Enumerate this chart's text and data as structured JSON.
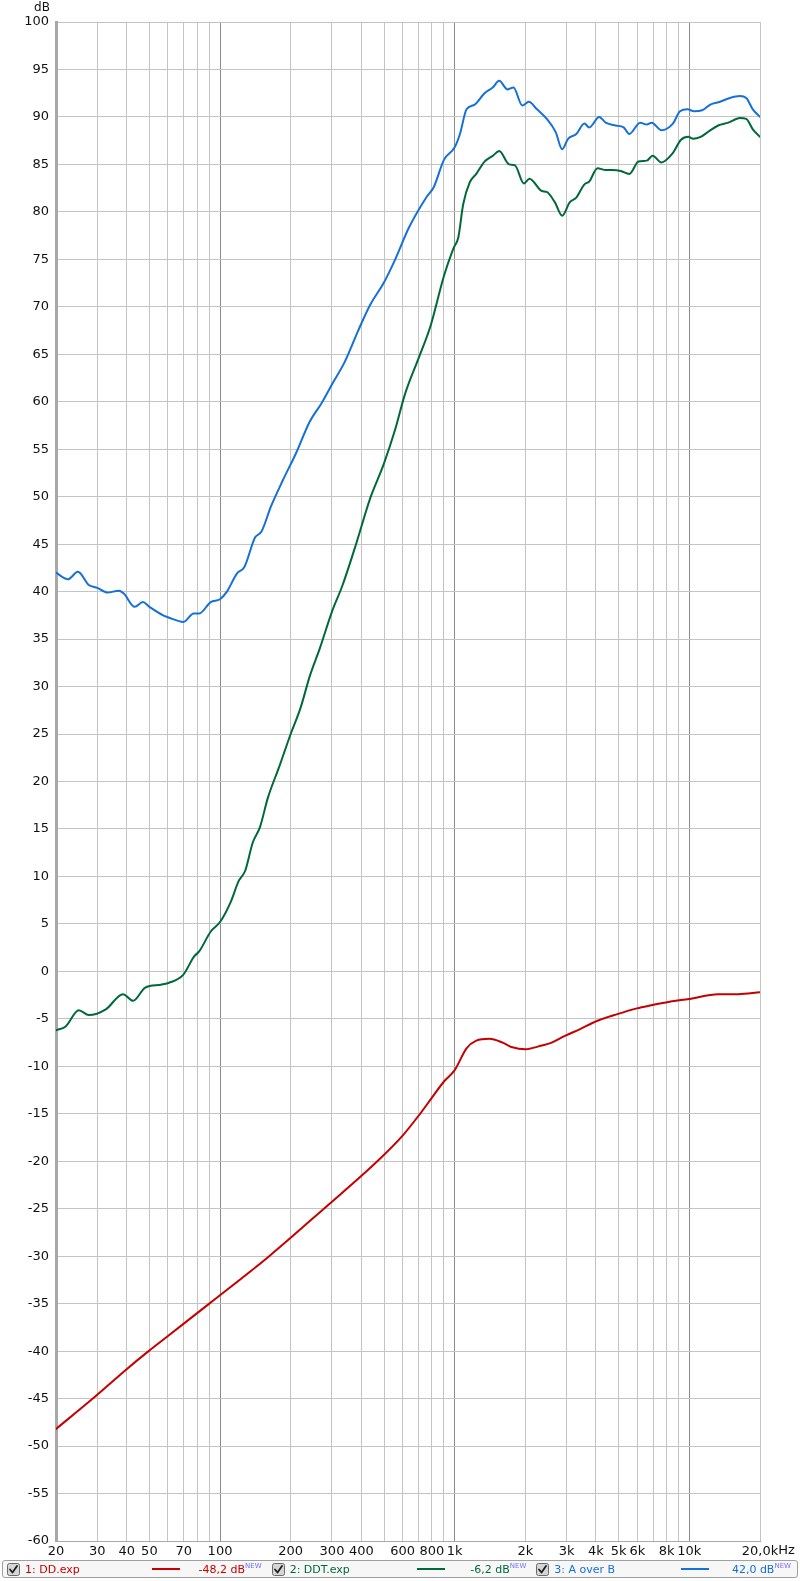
{
  "chart_data": {
    "type": "line",
    "ylabel": "dB",
    "xlabel": "Hz",
    "log": "x",
    "grid": true,
    "legend": "bottom",
    "xlim": [
      20,
      20000
    ],
    "ylim": [
      -60,
      100
    ],
    "xticks": [
      20,
      30,
      40,
      50,
      {
        "value": 60,
        "label": null
      },
      70,
      {
        "value": 80,
        "label": null
      },
      {
        "value": 90,
        "label": null
      },
      100,
      200,
      300,
      400,
      {
        "value": 500,
        "label": null
      },
      600,
      {
        "value": 700,
        "label": null
      },
      800,
      {
        "value": 900,
        "label": null
      },
      {
        "value": 1000,
        "label": "1k"
      },
      {
        "value": 2000,
        "label": "2k"
      },
      {
        "value": 3000,
        "label": "3k"
      },
      {
        "value": 4000,
        "label": "4k"
      },
      {
        "value": 5000,
        "label": "5k"
      },
      {
        "value": 6000,
        "label": "6k"
      },
      {
        "value": 7000,
        "label": null
      },
      {
        "value": 8000,
        "label": "8k"
      },
      {
        "value": 9000,
        "label": null
      },
      {
        "value": 10000,
        "label": "10k"
      },
      {
        "value": 20000,
        "label": "20,0k"
      }
    ],
    "yticks": [
      -60,
      -55,
      -50,
      -45,
      -40,
      -35,
      -30,
      -25,
      -20,
      -15,
      -10,
      -5,
      0,
      5,
      10,
      15,
      20,
      25,
      30,
      35,
      40,
      45,
      50,
      55,
      60,
      65,
      70,
      75,
      80,
      85,
      90,
      95,
      100
    ],
    "annotations": [
      "-48,2 dB$^{NEW}$",
      "-6,2 dB$^{NEW}$",
      "42,0 dB$^{NEW}$"
    ],
    "series": [
      {
        "name": "1: DD.exp",
        "color": "#c40000",
        "x": [
          20,
          28.7,
          40,
          49.6,
          60,
          90,
          162,
          277,
          468,
          600,
          712,
          800,
          900,
          1000,
          1123,
          1236,
          1406,
          1600,
          1762,
          2002,
          2277,
          2590,
          2948,
          3406,
          4060,
          4934,
          5977,
          6795,
          8248,
          9980,
          13270,
          16130,
          20000
        ],
        "values": [
          -48.2,
          -45.0,
          -41.9,
          -40.0,
          -38.4,
          -35.0,
          -30.0,
          -25.0,
          -20.0,
          -17.3,
          -15.0,
          -13.3,
          -11.6,
          -10.4,
          -8.1,
          -7.3,
          -7.1,
          -7.5,
          -8.0,
          -8.2,
          -7.9,
          -7.5,
          -6.8,
          -6.1,
          -5.2,
          -4.5,
          -3.9,
          -3.6,
          -3.2,
          -2.9,
          -2.4,
          -2.4,
          -2.2
        ]
      },
      {
        "name": "2: DDT.exp",
        "color": "#00693a",
        "x": [
          20,
          22,
          25,
          27.6,
          32.6,
          38.6,
          42.6,
          48,
          56,
          60.6,
          69.5,
          77.7,
          81.5,
          91.3,
          100,
          111,
          120,
          128,
          138,
          148,
          160,
          179,
          200,
          220,
          242,
          266,
          300,
          333,
          381,
          436,
          498,
          558,
          614,
          702,
          787,
          901,
          990,
          1036,
          1087,
          1159,
          1236,
          1340,
          1452,
          1548,
          1706,
          1807,
          1971,
          2083,
          2351,
          2468,
          2674,
          2872,
          3091,
          3297,
          3572,
          3745,
          4060,
          4400,
          4695,
          5099,
          5547,
          6070,
          6582,
          6972,
          7602,
          8446,
          9218,
          9912,
          10370,
          11170,
          12140,
          13270,
          14660,
          16400,
          17480,
          18640,
          20000
        ],
        "values": [
          -6.2,
          -5.8,
          -4.1,
          -4.6,
          -4.0,
          -2.4,
          -3.1,
          -1.7,
          -1.4,
          -1.2,
          -0.4,
          1.6,
          2.1,
          4.2,
          5.2,
          7.3,
          9.5,
          10.6,
          13.6,
          15.2,
          18.3,
          21.6,
          25.0,
          27.7,
          31.2,
          34.0,
          37.9,
          40.7,
          45.1,
          49.8,
          53.4,
          57.1,
          60.8,
          64.6,
          67.9,
          73.3,
          76.2,
          77.3,
          80.8,
          83.1,
          84.0,
          85.3,
          85.9,
          86.4,
          85.0,
          84.9,
          83.0,
          83.5,
          82.2,
          82.1,
          81.0,
          79.6,
          81.0,
          81.5,
          82.9,
          83.2,
          84.6,
          84.4,
          84.4,
          84.3,
          84.0,
          85.3,
          85.4,
          85.9,
          85.2,
          86.1,
          87.6,
          87.9,
          87.7,
          87.9,
          88.5,
          89.1,
          89.4,
          89.9,
          89.8,
          88.7,
          87.9
        ]
      },
      {
        "name": "3: A over B",
        "color": "#1570d8",
        "x": [
          20,
          22.5,
          24.8,
          27.6,
          30,
          33.1,
          37.1,
          38.9,
          43.3,
          46.9,
          50,
          57.2,
          60,
          69.9,
          77.2,
          81.5,
          91.3,
          100,
          107,
          118,
          127,
          141,
          150,
          165,
          185,
          211,
          241,
          270,
          301,
          340,
          388,
          436,
          498,
          558,
          637,
          760,
          814,
          901,
          1000,
          1053,
          1123,
          1217,
          1340,
          1452,
          1548,
          1679,
          1780,
          1941,
          2069,
          2243,
          2468,
          2694,
          2872,
          3042,
          3297,
          3572,
          3745,
          4126,
          4400,
          4846,
          5249,
          5547,
          6171,
          6582,
          6906,
          7602,
          8506,
          9124,
          9814,
          10466,
          11340,
          12288,
          13520,
          14890,
          16400,
          17480,
          18640,
          20000
        ],
        "values": [
          42.0,
          41.3,
          42.1,
          40.7,
          40.4,
          39.9,
          40.1,
          39.8,
          38.4,
          38.9,
          38.4,
          37.5,
          37.3,
          36.8,
          37.7,
          37.7,
          38.9,
          39.2,
          40.0,
          41.9,
          42.6,
          45.7,
          46.3,
          49.0,
          51.7,
          54.6,
          57.9,
          59.8,
          61.9,
          64.2,
          67.5,
          70.2,
          72.5,
          75.0,
          78.3,
          81.6,
          82.6,
          85.5,
          86.8,
          88.2,
          90.8,
          91.3,
          92.5,
          93.1,
          93.8,
          92.9,
          93.1,
          91.2,
          91.6,
          90.8,
          89.8,
          88.4,
          86.6,
          87.7,
          88.2,
          89.3,
          88.9,
          90.0,
          89.4,
          89.1,
          88.9,
          88.2,
          89.4,
          89.2,
          89.4,
          88.6,
          89.3,
          90.6,
          90.8,
          90.6,
          90.7,
          91.3,
          91.6,
          92.0,
          92.2,
          92.0,
          90.8,
          90.0
        ]
      }
    ]
  }
}
